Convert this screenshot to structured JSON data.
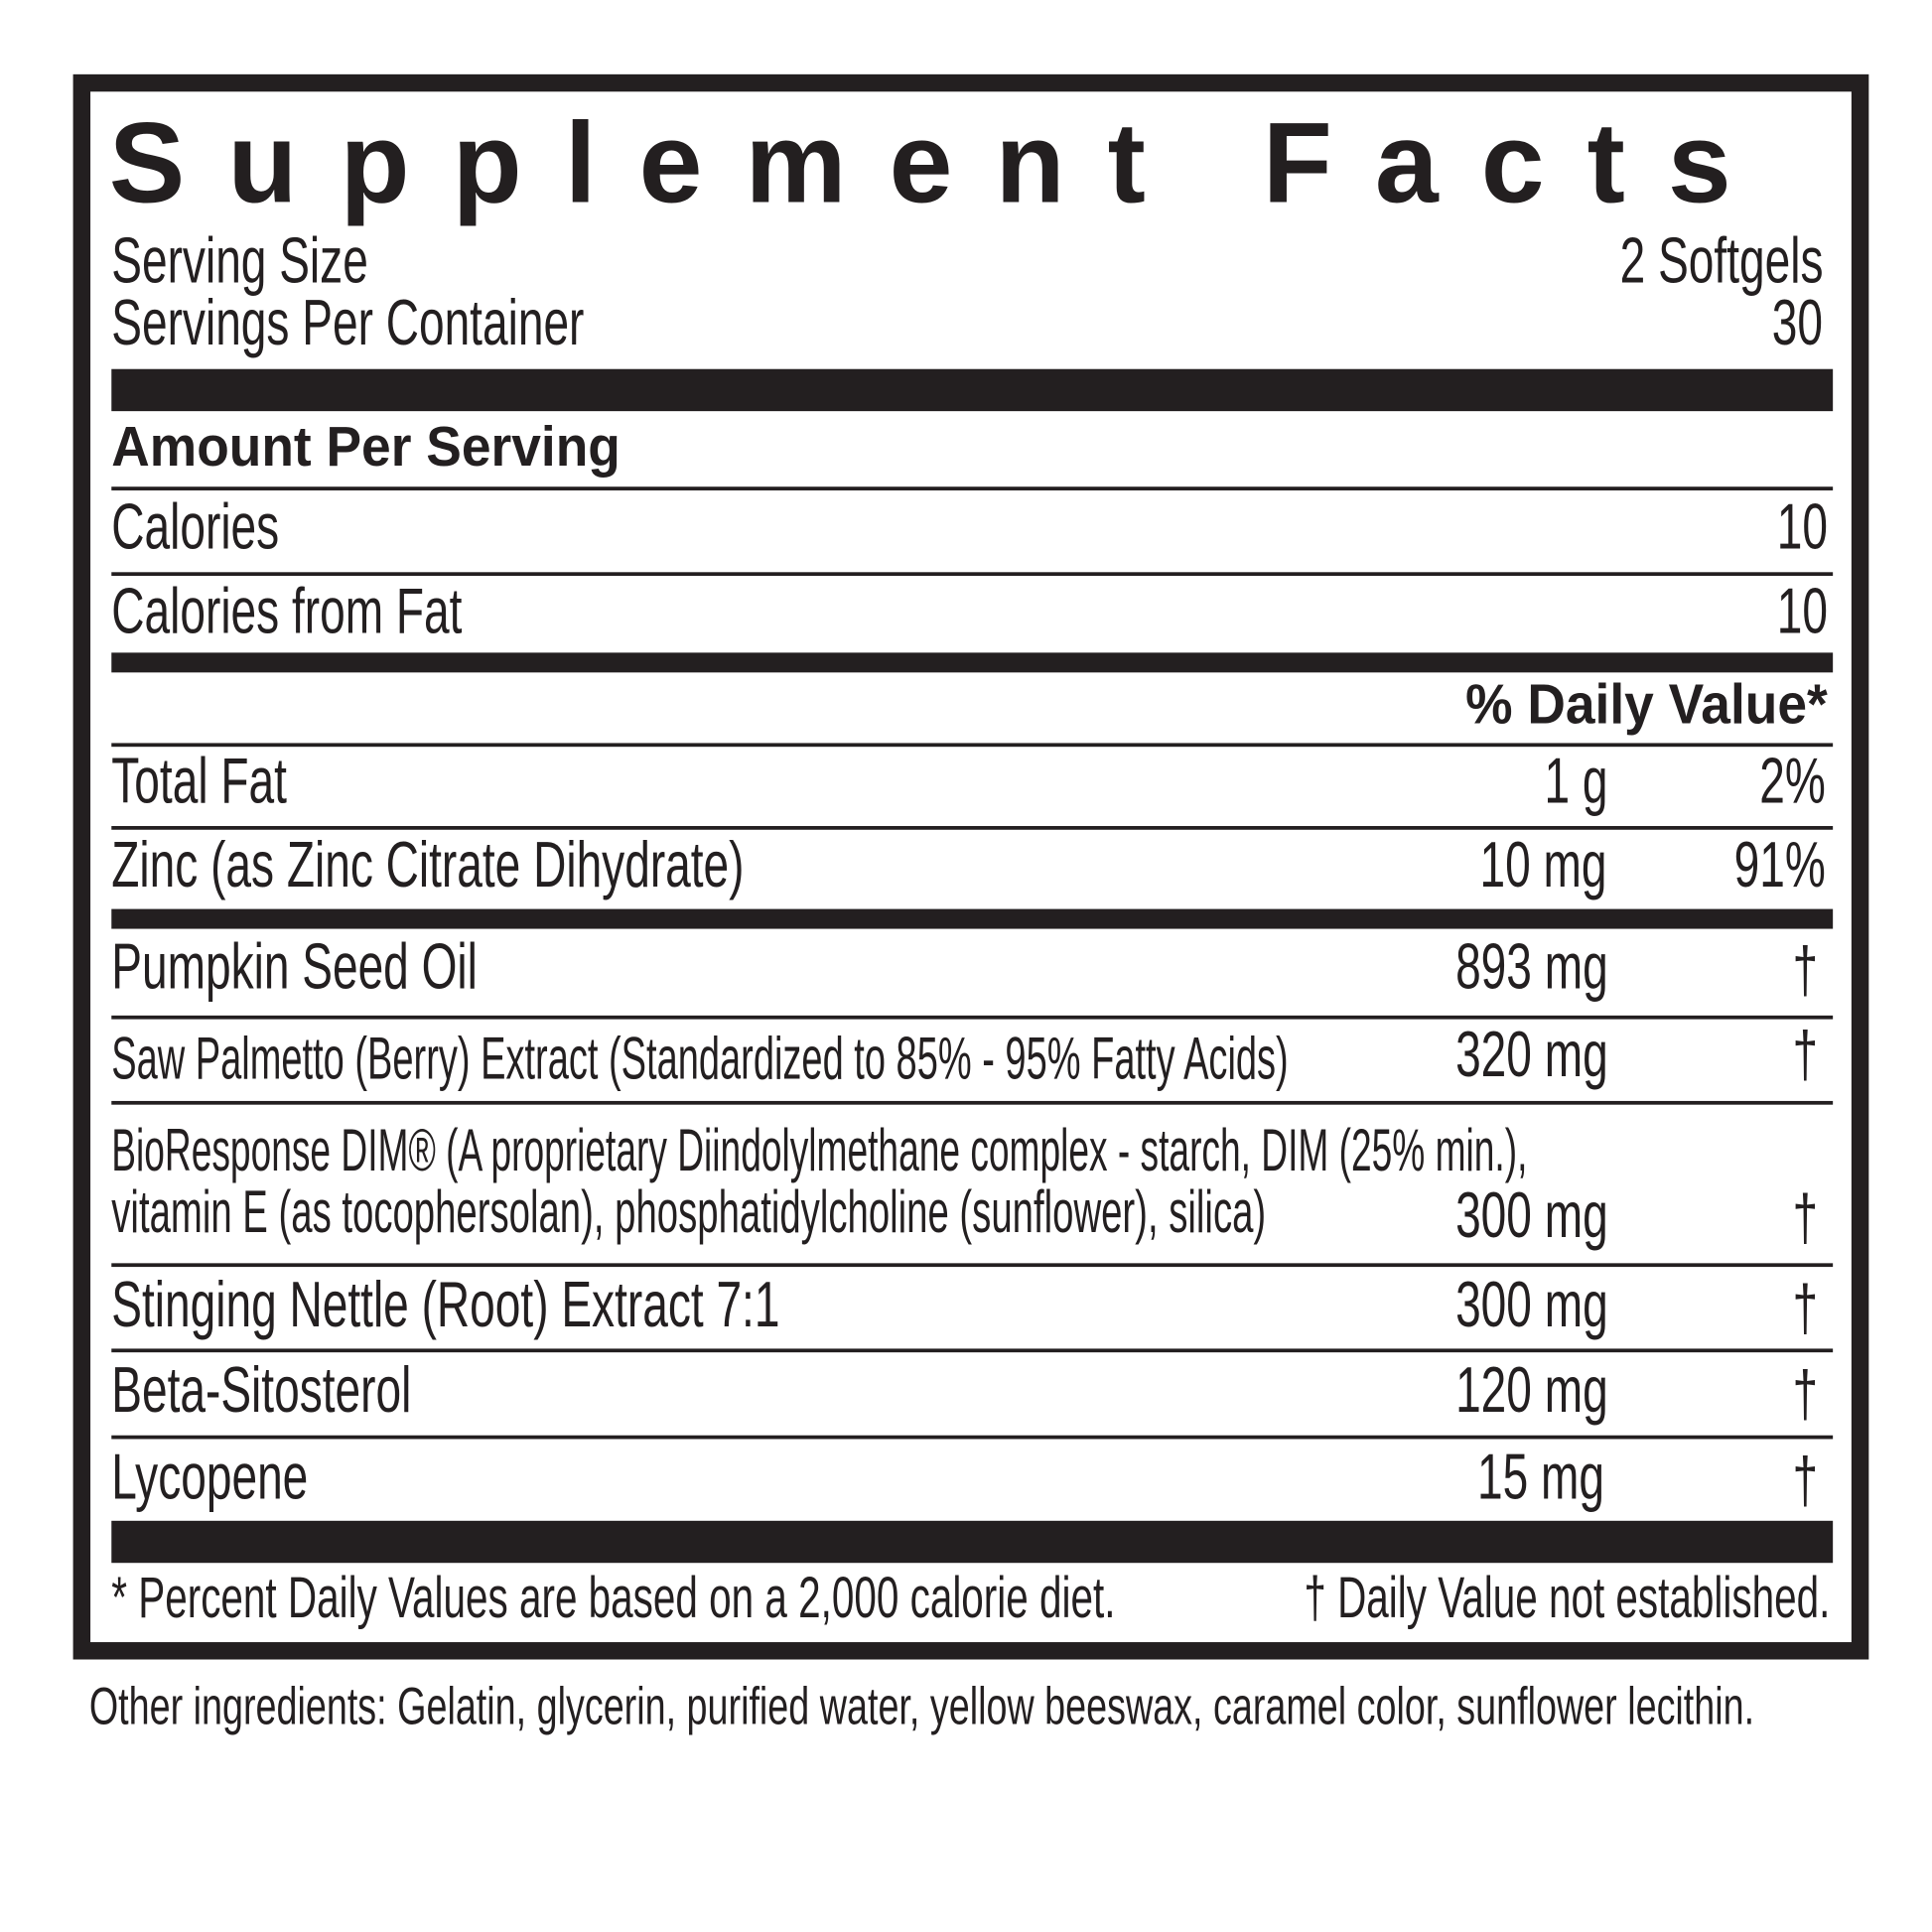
{
  "title": "Supplement Facts",
  "serving_size": {
    "label": "Serving Size",
    "value": "2 Softgels"
  },
  "servings_per_container": {
    "label": "Servings Per Container",
    "value": "30"
  },
  "amount_per_serving": "Amount Per Serving",
  "calories": {
    "label": "Calories",
    "value": "10"
  },
  "calories_from_fat": {
    "label": "Calories from Fat",
    "value": "10"
  },
  "daily_value_header": "% Daily Value*",
  "nutrients": [
    {
      "name": "Total Fat",
      "amount": "1 g",
      "dv": "2%"
    },
    {
      "name": "Zinc (as Zinc Citrate Dihydrate)",
      "amount": "10 mg",
      "dv": "91%"
    }
  ],
  "ingredients": [
    {
      "name": "Pumpkin Seed Oil",
      "amount": "893 mg",
      "dv": "†"
    },
    {
      "name": "Saw Palmetto (Berry) Extract (Standardized to 85% - 95% Fatty Acids)",
      "amount": "320 mg",
      "dv": "†"
    },
    {
      "name_line1": "BioResponse DIM® (A proprietary Diindolylmethane complex - starch, DIM (25% min.),",
      "name_line2": "vitamin E (as tocophersolan), phosphatidylcholine (sunflower), silica)",
      "amount": "300 mg",
      "dv": "†"
    },
    {
      "name": "Stinging Nettle (Root) Extract 7:1",
      "amount": "300 mg",
      "dv": "†"
    },
    {
      "name": "Beta-Sitosterol",
      "amount": "120 mg",
      "dv": "†"
    },
    {
      "name": "Lycopene",
      "amount": "15 mg",
      "dv": "†"
    }
  ],
  "footnote": {
    "percent_note": "* Percent Daily Values are based on a 2,000 calorie diet.",
    "dagger_note": "† Daily Value not established."
  },
  "other_ingredients": "Other ingredients: Gelatin, glycerin, purified water, yellow beeswax, caramel color, sunflower lecithin.",
  "colors": {
    "ink": "#231f20",
    "background": "#ffffff"
  }
}
